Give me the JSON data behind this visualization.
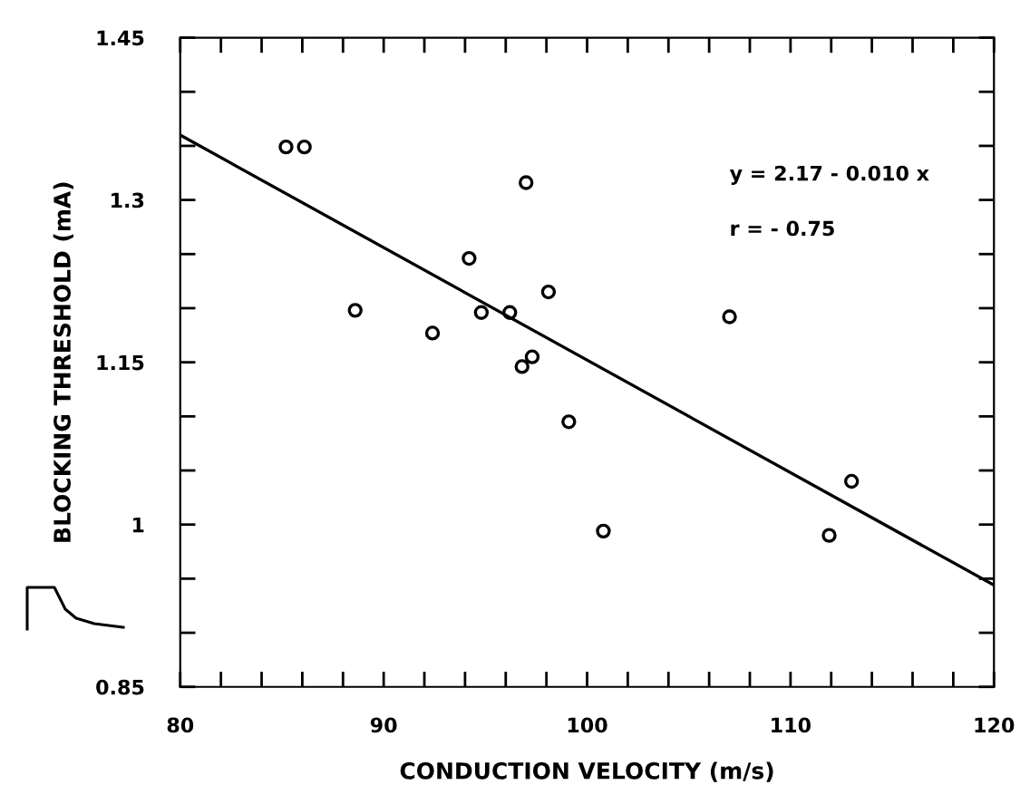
{
  "chart_data": {
    "type": "scatter",
    "xlabel": "CONDUCTION VELOCITY (m/s)",
    "ylabel": "BLOCKING THRESHOLD (mA)",
    "series": [
      {
        "color": "#000000",
        "marker": "circle",
        "x": [
          85.2,
          86.1,
          88.6,
          92.4,
          94.2,
          94.8,
          96.2,
          97.0,
          96.8,
          97.3,
          98.1,
          99.1,
          100.8,
          107.0,
          111.9,
          113.0
        ],
        "values": [
          1.349,
          1.349,
          1.198,
          1.177,
          1.246,
          1.196,
          1.196,
          1.316,
          1.146,
          1.155,
          1.215,
          1.095,
          0.994,
          1.192,
          0.99,
          1.04
        ]
      },
      {
        "type": "line",
        "color": "#000000",
        "marker": "none",
        "line_style": "solid",
        "x": [
          80,
          120
        ],
        "values": [
          1.36,
          0.944
        ]
      }
    ],
    "xlim": [
      80,
      120
    ],
    "xticks": [
      80,
      {
        "value": 82,
        "label": null
      },
      {
        "value": 84,
        "label": null
      },
      {
        "value": 86,
        "label": null
      },
      {
        "value": 88,
        "label": null
      },
      90,
      {
        "value": 92,
        "label": null
      },
      {
        "value": 94,
        "label": null
      },
      {
        "value": 96,
        "label": null
      },
      {
        "value": 98,
        "label": null
      },
      100,
      {
        "value": 102,
        "label": null
      },
      {
        "value": 104,
        "label": null
      },
      {
        "value": 106,
        "label": null
      },
      {
        "value": 108,
        "label": null
      },
      110,
      {
        "value": 112,
        "label": null
      },
      {
        "value": 114,
        "label": null
      },
      {
        "value": 116,
        "label": null
      },
      {
        "value": 118,
        "label": null
      },
      120
    ],
    "ylim": [
      0.85,
      1.45
    ],
    "yticks": [
      0.85,
      {
        "value": 0.9,
        "label": null
      },
      {
        "value": 0.95,
        "label": null
      },
      1,
      {
        "value": 1.05,
        "label": null
      },
      {
        "value": 1.1,
        "label": null
      },
      1.15,
      {
        "value": 1.2,
        "label": null
      },
      {
        "value": 1.25,
        "label": null
      },
      1.3,
      {
        "value": 1.35,
        "label": null
      },
      {
        "value": 1.4,
        "label": null
      },
      1.45
    ],
    "annotations": [
      "y = 2.17 - 0.010 x",
      "r = - 0.75"
    ],
    "grid": false,
    "legend": false
  }
}
